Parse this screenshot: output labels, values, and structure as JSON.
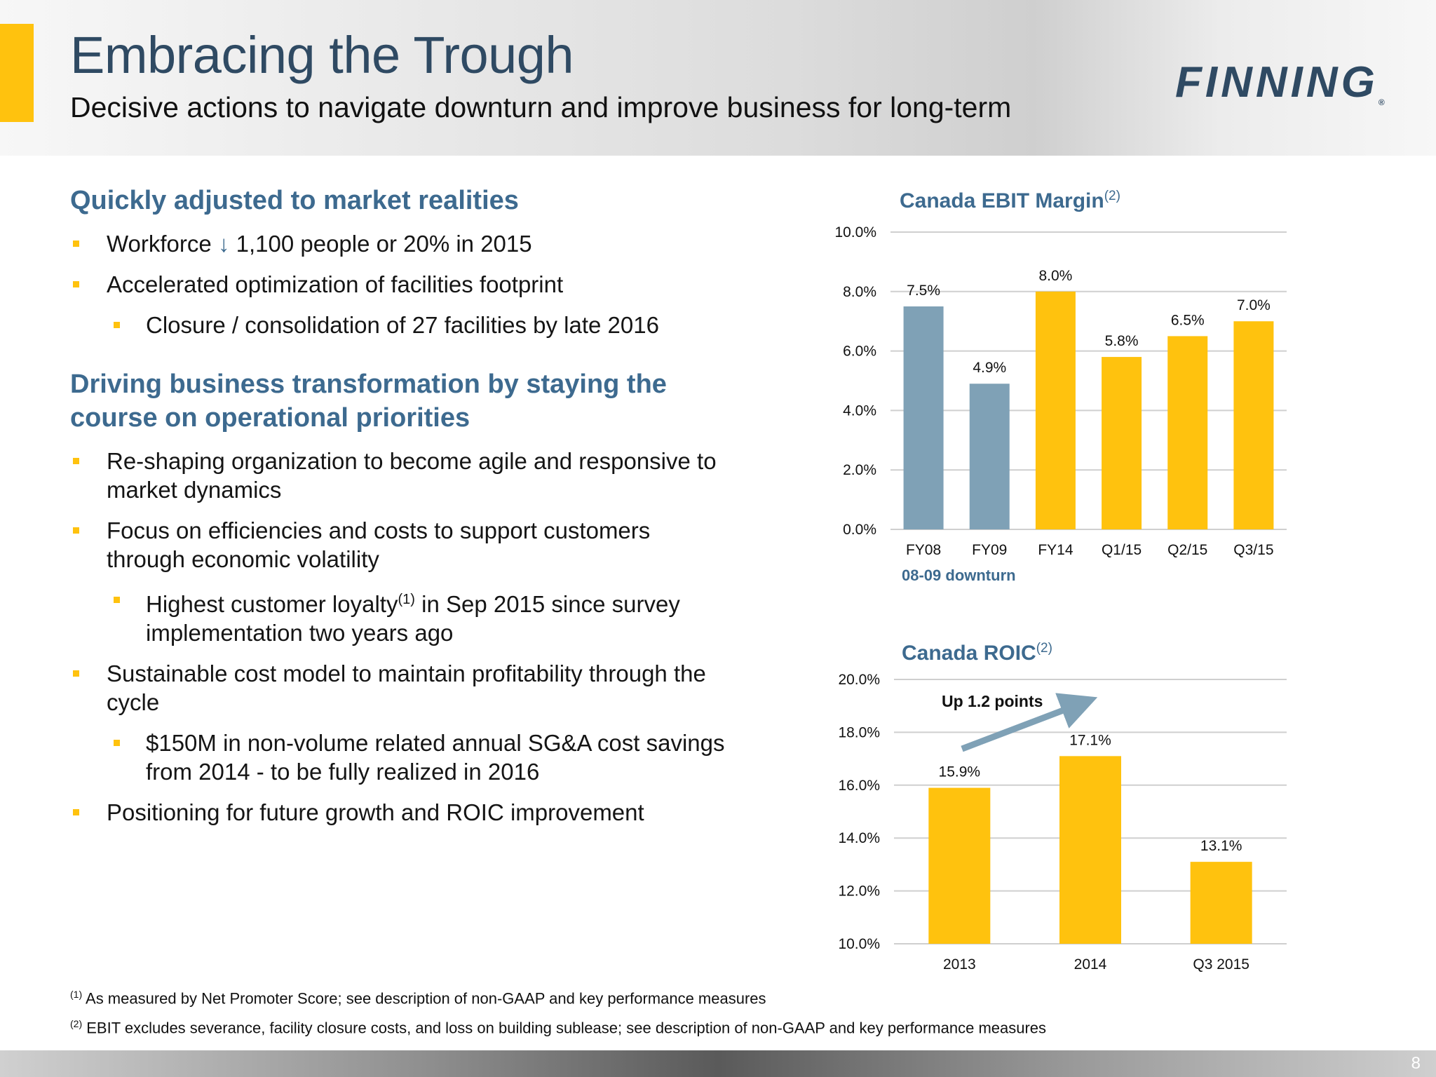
{
  "header": {
    "title": "Embracing the Trough",
    "subtitle": "Decisive actions to navigate downturn and improve business for long-term",
    "logo_text": "FINNING",
    "logo_mark": "®"
  },
  "left": {
    "section1": {
      "heading": "Quickly adjusted to market realities",
      "bullet1_pre": "Workforce",
      "bullet1_arrow": "↓",
      "bullet1_post": "1,100 people or 20% in 2015",
      "bullet2": "Accelerated optimization of facilities footprint",
      "sub1": "Closure / consolidation of 27 facilities by late 2016"
    },
    "section2": {
      "heading": "Driving business transformation by staying the course on operational priorities",
      "bullet1": "Re-shaping organization to become agile and responsive to market dynamics",
      "bullet2": "Focus on efficiencies and costs to support customers through economic volatility",
      "sub1_pre": "Highest customer loyalty",
      "sub1_sup": "(1)",
      "sub1_post": " in Sep 2015 since survey implementation two years ago",
      "bullet3": "Sustainable cost model to maintain profitability through the cycle",
      "sub2": "$150M in non-volume related annual SG&A cost savings from 2014 - to be fully realized in 2016",
      "bullet4": "Positioning for future growth and ROIC improvement"
    }
  },
  "chart_data": [
    {
      "type": "bar",
      "title": "Canada EBIT Margin",
      "title_sup": "(2)",
      "categories": [
        "FY08",
        "FY09",
        "FY14",
        "Q1/15",
        "Q2/15",
        "Q3/15"
      ],
      "values": [
        7.5,
        4.9,
        8.0,
        5.8,
        6.5,
        7.0
      ],
      "data_labels": [
        "7.5%",
        "4.9%",
        "8.0%",
        "5.8%",
        "6.5%",
        "7.0%"
      ],
      "bar_colors": [
        "#7fa1b6",
        "#7fa1b6",
        "#FFC20E",
        "#FFC20E",
        "#FFC20E",
        "#FFC20E"
      ],
      "ylim": [
        0,
        10
      ],
      "yticks": [
        "0.0%",
        "2.0%",
        "4.0%",
        "6.0%",
        "8.0%",
        "10.0%"
      ],
      "annotation": "08-09 downturn",
      "grid": true
    },
    {
      "type": "bar",
      "title": "Canada ROIC",
      "title_sup": "(2)",
      "categories": [
        "2013",
        "2014",
        "Q3 2015"
      ],
      "values": [
        15.9,
        17.1,
        13.1
      ],
      "data_labels": [
        "15.9%",
        "17.1%",
        "13.1%"
      ],
      "bar_colors": [
        "#FFC20E",
        "#FFC20E",
        "#FFC20E"
      ],
      "ylim": [
        10,
        20
      ],
      "yticks": [
        "10.0%",
        "12.0%",
        "14.0%",
        "16.0%",
        "18.0%",
        "20.0%"
      ],
      "annotation": "Up 1.2 points",
      "grid": true
    }
  ],
  "footnotes": {
    "f1_mark": "(1)",
    "f1": " As measured by Net Promoter Score; see description of non-GAAP and key performance measures",
    "f2_mark": "(2)",
    "f2": " EBIT excludes severance, facility closure costs, and loss on building sublease; see description of non-GAAP and key performance measures"
  },
  "page_number": "8",
  "colors": {
    "accent": "#FFC20E",
    "steel_blue": "#7fa1b6",
    "heading_blue": "#3d6a8f",
    "title_navy": "#2f4a63"
  }
}
